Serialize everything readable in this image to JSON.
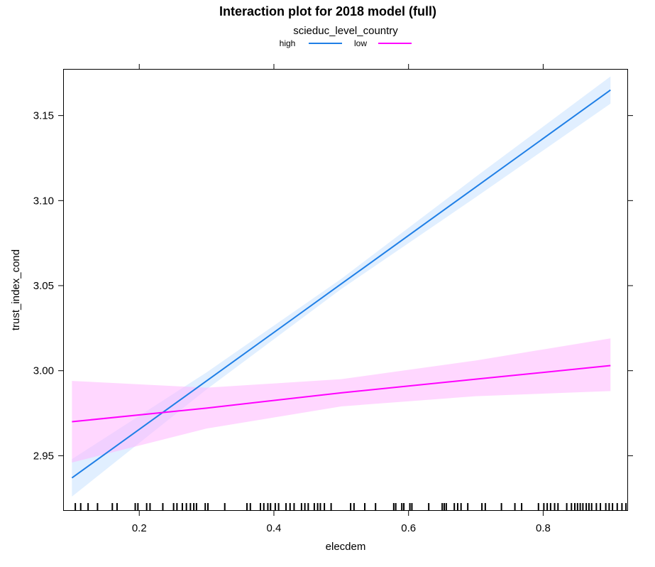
{
  "chart_data": {
    "type": "line",
    "title": "Interaction plot for 2018 model (full)",
    "xlabel": "elecdem",
    "ylabel": "trust_index_cond",
    "xlim": [
      0.088,
      0.925
    ],
    "ylim": [
      2.918,
      3.177
    ],
    "x_ticks": [
      0.2,
      0.4,
      0.6,
      0.8
    ],
    "x_tick_labels": [
      "0.2",
      "0.4",
      "0.6",
      "0.8"
    ],
    "y_ticks": [
      2.95,
      3.0,
      3.05,
      3.1,
      3.15
    ],
    "y_tick_labels": [
      "2.95",
      "3.00",
      "3.05",
      "3.10",
      "3.15"
    ],
    "legend": {
      "title": "scieduc_level_country",
      "placement": "top-center"
    },
    "grid": false,
    "series": [
      {
        "name": "high",
        "color": "#1F7FE6",
        "band_color": "#C9E2FF",
        "x": [
          0.1,
          0.3,
          0.5,
          0.7,
          0.9
        ],
        "y": [
          2.937,
          2.994,
          3.051,
          3.108,
          3.165
        ],
        "lower": [
          2.926,
          2.989,
          3.048,
          3.102,
          3.157
        ],
        "upper": [
          2.948,
          2.999,
          3.054,
          3.114,
          3.173
        ]
      },
      {
        "name": "low",
        "color": "#FF00FF",
        "band_color": "#FFB6FF",
        "x": [
          0.1,
          0.3,
          0.5,
          0.7,
          0.9
        ],
        "y": [
          2.97,
          2.978,
          2.987,
          2.995,
          3.003
        ],
        "lower": [
          2.946,
          2.966,
          2.979,
          2.985,
          2.988
        ],
        "upper": [
          2.994,
          2.99,
          2.995,
          3.006,
          3.019
        ]
      }
    ],
    "rug_x": [
      0.105,
      0.113,
      0.124,
      0.138,
      0.16,
      0.167,
      0.194,
      0.198,
      0.211,
      0.216,
      0.235,
      0.251,
      0.256,
      0.264,
      0.27,
      0.276,
      0.281,
      0.285,
      0.298,
      0.302,
      0.327,
      0.36,
      0.365,
      0.38,
      0.385,
      0.391,
      0.395,
      0.402,
      0.407,
      0.418,
      0.424,
      0.43,
      0.441,
      0.446,
      0.451,
      0.46,
      0.465,
      0.469,
      0.475,
      0.485,
      0.514,
      0.519,
      0.535,
      0.551,
      0.578,
      0.581,
      0.59,
      0.593,
      0.602,
      0.605,
      0.63,
      0.65,
      0.653,
      0.656,
      0.668,
      0.673,
      0.678,
      0.688,
      0.709,
      0.714,
      0.738,
      0.758,
      0.768,
      0.793,
      0.801,
      0.806,
      0.811,
      0.817,
      0.822,
      0.835,
      0.842,
      0.847,
      0.851,
      0.855,
      0.859,
      0.864,
      0.868,
      0.872,
      0.879,
      0.885,
      0.893,
      0.898,
      0.903,
      0.91,
      0.917,
      0.923
    ]
  }
}
